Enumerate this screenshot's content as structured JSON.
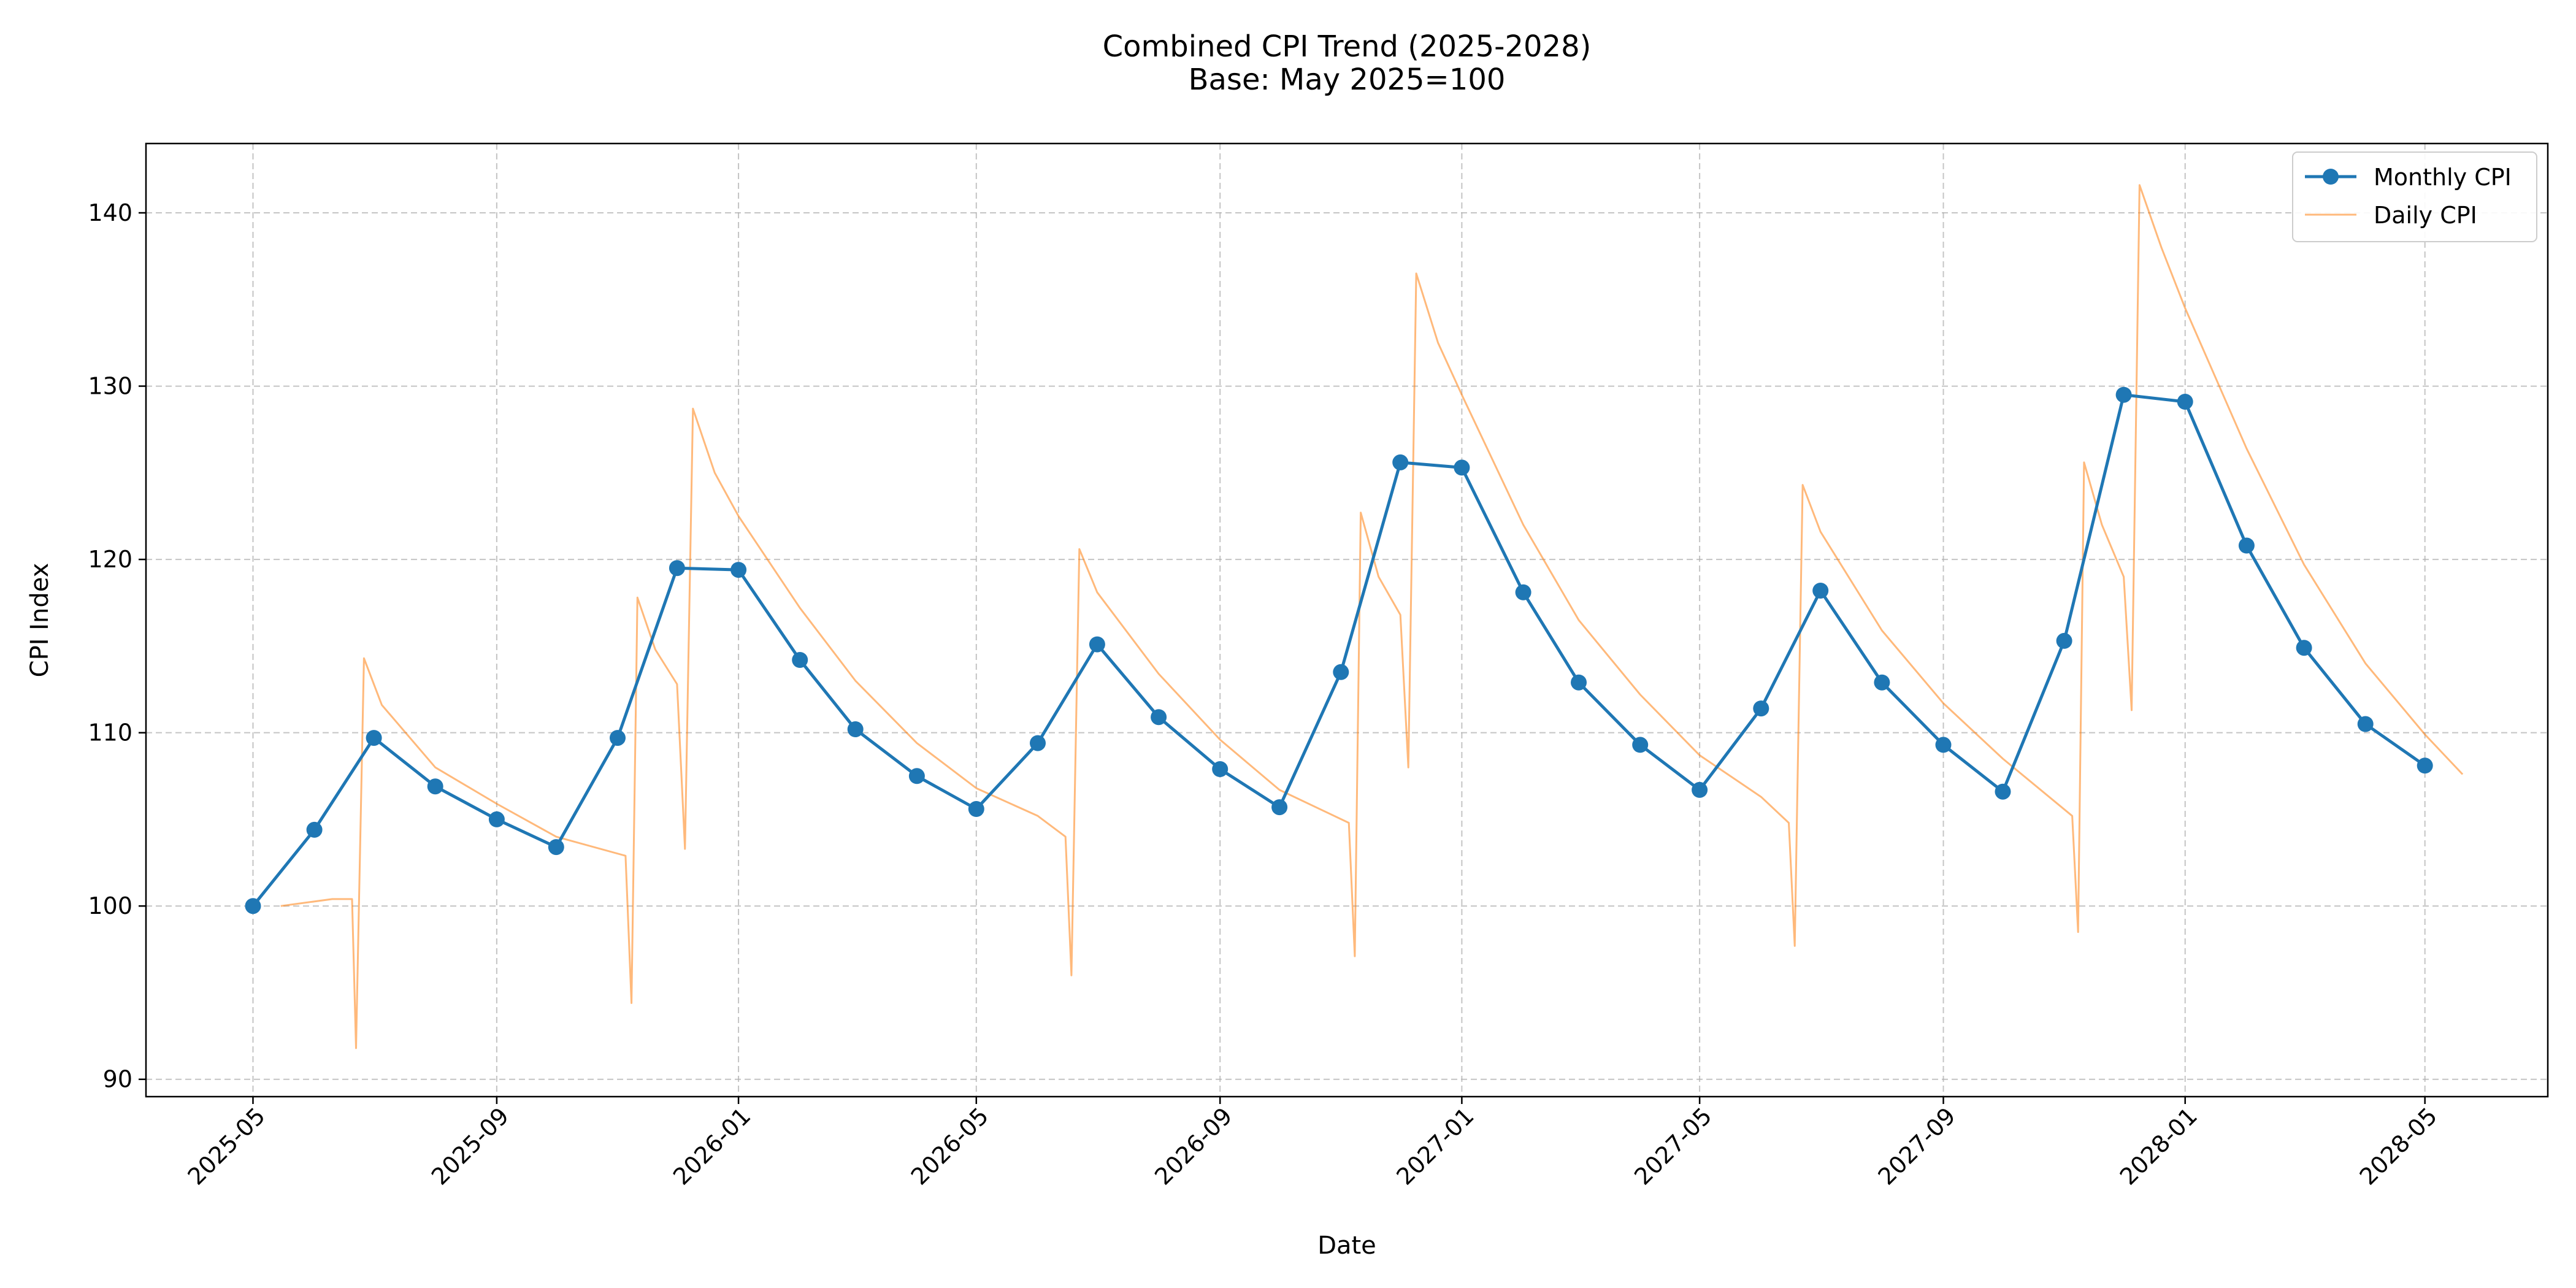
{
  "chart_data": {
    "type": "line",
    "title": "Combined CPI Trend (2025-2028)",
    "subtitle": "Base: May 2025=100",
    "xlabel": "Date",
    "ylabel": "CPI Index",
    "xlim": [
      "2025-03-08",
      "2028-07-02"
    ],
    "ylim": [
      89,
      144
    ],
    "yticks": [
      90,
      100,
      110,
      120,
      130,
      140
    ],
    "xticks": [
      "2025-05",
      "2025-09",
      "2026-01",
      "2026-05",
      "2026-09",
      "2027-01",
      "2027-05",
      "2027-09",
      "2028-01",
      "2028-05"
    ],
    "grid": true,
    "legend_position": "top-right",
    "colors": {
      "monthly": "#1f77b4",
      "daily": "#ff7f0e"
    },
    "series": [
      {
        "name": "Monthly CPI",
        "style": "line-with-markers",
        "points": [
          [
            "2025-05-01",
            100.0
          ],
          [
            "2025-06-01",
            104.4
          ],
          [
            "2025-07-01",
            109.7
          ],
          [
            "2025-08-01",
            106.9
          ],
          [
            "2025-09-01",
            105.0
          ],
          [
            "2025-10-01",
            103.4
          ],
          [
            "2025-11-01",
            109.7
          ],
          [
            "2025-12-01",
            119.5
          ],
          [
            "2026-01-01",
            119.4
          ],
          [
            "2026-02-01",
            114.2
          ],
          [
            "2026-03-01",
            110.2
          ],
          [
            "2026-04-01",
            107.5
          ],
          [
            "2026-05-01",
            105.6
          ],
          [
            "2026-06-01",
            109.4
          ],
          [
            "2026-07-01",
            115.1
          ],
          [
            "2026-08-01",
            110.9
          ],
          [
            "2026-09-01",
            107.9
          ],
          [
            "2026-10-01",
            105.7
          ],
          [
            "2026-11-01",
            113.5
          ],
          [
            "2026-12-01",
            125.6
          ],
          [
            "2027-01-01",
            125.3
          ],
          [
            "2027-02-01",
            118.1
          ],
          [
            "2027-03-01",
            112.9
          ],
          [
            "2027-04-01",
            109.3
          ],
          [
            "2027-05-01",
            106.7
          ],
          [
            "2027-06-01",
            111.4
          ],
          [
            "2027-07-01",
            118.2
          ],
          [
            "2027-08-01",
            112.9
          ],
          [
            "2027-09-01",
            109.3
          ],
          [
            "2027-10-01",
            106.6
          ],
          [
            "2027-11-01",
            115.3
          ],
          [
            "2027-12-01",
            129.5
          ],
          [
            "2028-01-01",
            129.1
          ],
          [
            "2028-02-01",
            120.8
          ],
          [
            "2028-03-01",
            114.9
          ],
          [
            "2028-04-01",
            110.5
          ],
          [
            "2028-05-01",
            108.1
          ]
        ]
      },
      {
        "name": "Daily CPI",
        "style": "thin-line",
        "points": [
          [
            "2025-05-15",
            100.0
          ],
          [
            "2025-06-10",
            100.4
          ],
          [
            "2025-06-20",
            100.4
          ],
          [
            "2025-06-22",
            91.8
          ],
          [
            "2025-06-26",
            114.3
          ],
          [
            "2025-07-05",
            111.6
          ],
          [
            "2025-08-01",
            108.0
          ],
          [
            "2025-09-01",
            105.9
          ],
          [
            "2025-10-01",
            104.0
          ],
          [
            "2025-11-05",
            102.9
          ],
          [
            "2025-11-08",
            94.4
          ],
          [
            "2025-11-11",
            117.8
          ],
          [
            "2025-11-20",
            114.8
          ],
          [
            "2025-12-01",
            112.8
          ],
          [
            "2025-12-05",
            103.3
          ],
          [
            "2025-12-09",
            128.7
          ],
          [
            "2025-12-20",
            125.0
          ],
          [
            "2026-01-01",
            122.5
          ],
          [
            "2026-02-01",
            117.2
          ],
          [
            "2026-03-01",
            113.0
          ],
          [
            "2026-04-01",
            109.4
          ],
          [
            "2026-05-01",
            106.8
          ],
          [
            "2026-06-01",
            105.2
          ],
          [
            "2026-06-15",
            104.0
          ],
          [
            "2026-06-18",
            96.0
          ],
          [
            "2026-06-22",
            120.6
          ],
          [
            "2026-07-01",
            118.1
          ],
          [
            "2026-08-01",
            113.4
          ],
          [
            "2026-09-01",
            109.6
          ],
          [
            "2026-10-01",
            106.7
          ],
          [
            "2026-11-05",
            104.8
          ],
          [
            "2026-11-08",
            97.1
          ],
          [
            "2026-11-11",
            122.7
          ],
          [
            "2026-11-20",
            119.0
          ],
          [
            "2026-12-01",
            116.8
          ],
          [
            "2026-12-05",
            108.0
          ],
          [
            "2026-12-09",
            136.5
          ],
          [
            "2026-12-20",
            132.5
          ],
          [
            "2027-01-01",
            129.5
          ],
          [
            "2027-02-01",
            122.0
          ],
          [
            "2027-03-01",
            116.5
          ],
          [
            "2027-04-01",
            112.2
          ],
          [
            "2027-05-01",
            108.7
          ],
          [
            "2027-06-01",
            106.3
          ],
          [
            "2027-06-15",
            104.8
          ],
          [
            "2027-06-18",
            97.7
          ],
          [
            "2027-06-22",
            124.3
          ],
          [
            "2027-07-01",
            121.6
          ],
          [
            "2027-08-01",
            115.9
          ],
          [
            "2027-09-01",
            111.7
          ],
          [
            "2027-10-01",
            108.5
          ],
          [
            "2027-11-05",
            105.2
          ],
          [
            "2027-11-08",
            98.5
          ],
          [
            "2027-11-11",
            125.6
          ],
          [
            "2027-11-20",
            122.0
          ],
          [
            "2027-12-01",
            119.0
          ],
          [
            "2027-12-05",
            111.3
          ],
          [
            "2027-12-09",
            141.6
          ],
          [
            "2027-12-20",
            138.0
          ],
          [
            "2028-01-01",
            134.5
          ],
          [
            "2028-02-01",
            126.4
          ],
          [
            "2028-03-01",
            119.7
          ],
          [
            "2028-04-01",
            114.0
          ],
          [
            "2028-05-01",
            109.9
          ],
          [
            "2028-05-20",
            107.6
          ]
        ]
      }
    ]
  }
}
